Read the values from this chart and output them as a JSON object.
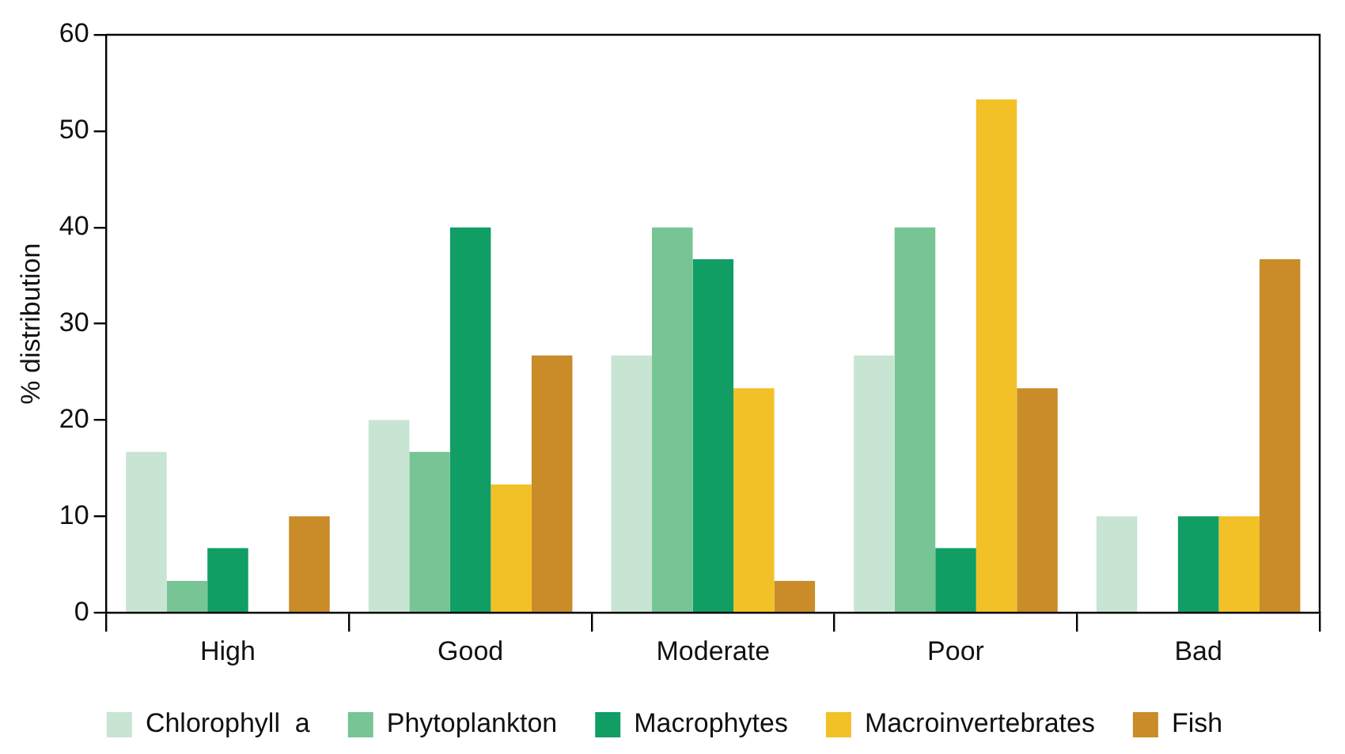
{
  "chart_data": {
    "type": "bar",
    "ylabel": "% distribution",
    "categories": [
      "High",
      "Good",
      "Moderate",
      "Poor",
      "Bad"
    ],
    "series": [
      {
        "name": "Chlorophyll  a",
        "color": "#c7e5d2",
        "values": [
          16.7,
          20,
          26.7,
          26.7,
          10
        ]
      },
      {
        "name": "Phytoplankton",
        "color": "#77c594",
        "values": [
          3.3,
          16.7,
          40,
          40,
          0
        ]
      },
      {
        "name": "Macrophytes",
        "color": "#109e64",
        "values": [
          6.7,
          40,
          36.7,
          6.7,
          10
        ]
      },
      {
        "name": "Macroinvertebrates",
        "color": "#f2c027",
        "values": [
          0,
          13.3,
          23.3,
          53.3,
          10
        ]
      },
      {
        "name": "Fish",
        "color": "#c98c29",
        "values": [
          10,
          26.7,
          3.3,
          23.3,
          36.7
        ]
      }
    ],
    "ylim": [
      0,
      60
    ],
    "yticks": [
      0,
      10,
      20,
      30,
      40,
      50,
      60
    ],
    "grid": false,
    "legend": "bottom"
  }
}
